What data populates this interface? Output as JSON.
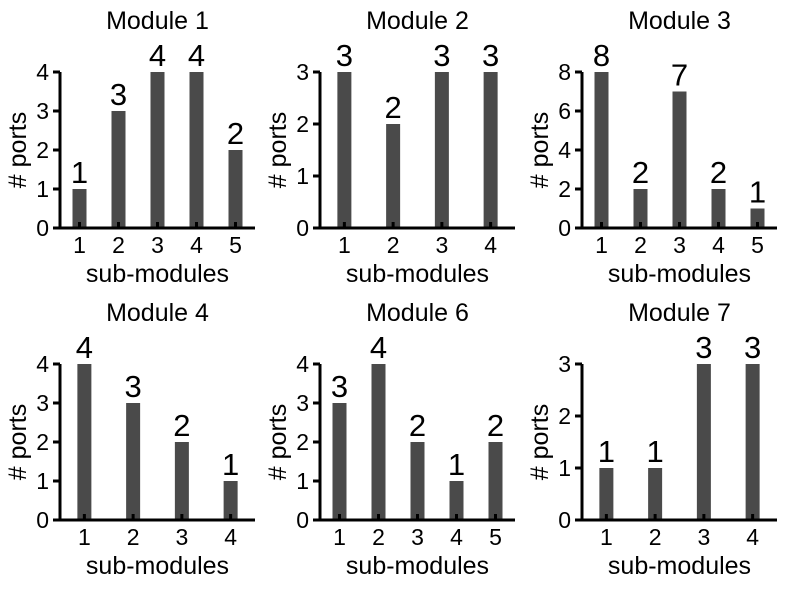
{
  "colors": {
    "bar": "#4a4a4a",
    "axis": "#000000",
    "background": "#ffffff"
  },
  "chart_data": [
    {
      "type": "bar",
      "title": "Module 1",
      "xlabel": "sub-modules",
      "ylabel": "# ports",
      "categories": [
        "1",
        "2",
        "3",
        "4",
        "5"
      ],
      "values": [
        1,
        3,
        4,
        4,
        2
      ],
      "ylim": [
        0,
        4
      ],
      "yticks": [
        "0",
        "1",
        "2",
        "3",
        "4"
      ],
      "grid": false
    },
    {
      "type": "bar",
      "title": "Module 2",
      "xlabel": "sub-modules",
      "ylabel": "# ports",
      "categories": [
        "1",
        "2",
        "3",
        "4"
      ],
      "values": [
        3,
        2,
        3,
        3
      ],
      "ylim": [
        0,
        3
      ],
      "yticks": [
        "0",
        "1",
        "2",
        "3"
      ],
      "grid": false
    },
    {
      "type": "bar",
      "title": "Module 3",
      "xlabel": "sub-modules",
      "ylabel": "# ports",
      "categories": [
        "1",
        "2",
        "3",
        "4",
        "5"
      ],
      "values": [
        8,
        2,
        7,
        2,
        1
      ],
      "ylim": [
        0,
        8
      ],
      "yticks": [
        "0",
        "2",
        "4",
        "6",
        "8"
      ],
      "grid": false
    },
    {
      "type": "bar",
      "title": "Module 4",
      "xlabel": "sub-modules",
      "ylabel": "# ports",
      "categories": [
        "1",
        "2",
        "3",
        "4"
      ],
      "values": [
        4,
        3,
        2,
        1
      ],
      "ylim": [
        0,
        4
      ],
      "yticks": [
        "0",
        "1",
        "2",
        "3",
        "4"
      ],
      "grid": false
    },
    {
      "type": "bar",
      "title": "Module 6",
      "xlabel": "sub-modules",
      "ylabel": "# ports",
      "categories": [
        "1",
        "2",
        "3",
        "4",
        "5"
      ],
      "values": [
        3,
        4,
        2,
        1,
        2
      ],
      "ylim": [
        0,
        4
      ],
      "yticks": [
        "0",
        "1",
        "2",
        "3",
        "4"
      ],
      "grid": false
    },
    {
      "type": "bar",
      "title": "Module 7",
      "xlabel": "sub-modules",
      "ylabel": "# ports",
      "categories": [
        "1",
        "2",
        "3",
        "4"
      ],
      "values": [
        1,
        1,
        3,
        3
      ],
      "ylim": [
        0,
        3
      ],
      "yticks": [
        "0",
        "1",
        "2",
        "3"
      ],
      "grid": false
    }
  ]
}
